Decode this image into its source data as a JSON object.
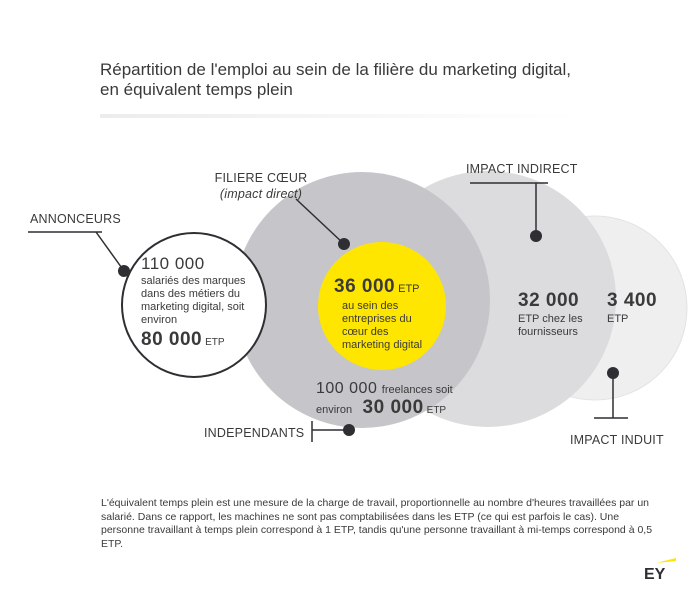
{
  "title": "Répartition de l'emploi au sein de la filière du marketing digital, en équivalent temps plein",
  "labels": {
    "filiere_coeur": "FILIERE CŒUR",
    "filiere_coeur_sub": "(impact direct)",
    "impact_indirect": "IMPACT INDIRECT",
    "annonceurs": "ANNONCEURS",
    "independants": "INDEPENDANTS",
    "impact_induit": "IMPACT INDUIT"
  },
  "annonceurs": {
    "count": "110 000",
    "desc": "salariés des marques dans des métiers du marketing digital, soit environ",
    "etp_value": "80 000",
    "etp_unit": "ETP"
  },
  "coeur": {
    "etp_value": "36 000",
    "etp_unit": "ETP",
    "desc": "au sein des entreprises du cœur des marketing digital"
  },
  "independants": {
    "count": "100 000",
    "desc": "freelances soit environ",
    "etp_value": "30 000",
    "etp_unit": "ETP"
  },
  "indirect": {
    "etp_value": "32 000",
    "desc": "ETP chez les fournisseurs"
  },
  "induit": {
    "etp_value": "3 400",
    "etp_unit": "ETP"
  },
  "footnote": "L'équivalent temps plein est une mesure de la charge de travail, proportionnelle au nombre d'heures travaillées par un salarié. Dans ce rapport, les machines ne sont pas comptabilisées dans les ETP (ce qui est parfois le cas). Une personne travaillant à temps plein correspond à 1 ETP, tandis qu'une personne travaillant à mi-temps correspond à 0,5 ETP.",
  "colors": {
    "outer_ring": "#c4c3c8",
    "indirect": "#d9d9db",
    "induit": "#ededee",
    "core": "#ffe600",
    "ink": "#2f2f33"
  },
  "logo": "EY"
}
